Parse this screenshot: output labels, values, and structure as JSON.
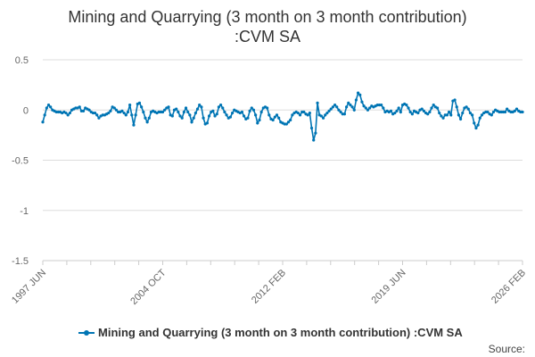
{
  "chart_data": {
    "type": "line",
    "title": [
      "Mining and Quarrying (3 month on 3 month contribution)",
      ":CVM SA"
    ],
    "xlabel": "",
    "ylabel": "",
    "ylim": [
      -1.5,
      0.5
    ],
    "y_ticks": [
      {
        "value": 0.5,
        "label": "0.5"
      },
      {
        "value": 0,
        "label": "0"
      },
      {
        "value": -0.5,
        "label": "-0.5"
      },
      {
        "value": -1,
        "label": "-1"
      },
      {
        "value": -1.5,
        "label": "-1.5"
      }
    ],
    "x_ticks": [
      "1997 JUN",
      "2004 OCT",
      "2012 FEB",
      "2019 JUN",
      "2026 FEB"
    ],
    "grid": "horizontal",
    "legend": {
      "position": "bottom",
      "entries": [
        "Mining and Quarrying (3 month on 3 month contribution) :CVM SA"
      ]
    },
    "series": [
      {
        "name": "Mining and Quarrying (3 month on 3 month contribution) :CVM SA",
        "color": "#0075b4",
        "start_period": "1997 JUN",
        "end_period": "2026 FEB",
        "values": [
          -0.12,
          -0.05,
          0.02,
          0.05,
          0.03,
          0.0,
          -0.01,
          -0.02,
          -0.02,
          -0.02,
          -0.03,
          -0.02,
          -0.03,
          -0.05,
          -0.03,
          0.0,
          0.01,
          0.02,
          0.02,
          0.03,
          -0.01,
          -0.01,
          0.02,
          0.01,
          0.0,
          -0.02,
          -0.03,
          -0.03,
          -0.05,
          -0.08,
          -0.06,
          -0.05,
          -0.05,
          -0.04,
          -0.03,
          -0.01,
          0.03,
          0.02,
          0.0,
          -0.02,
          -0.02,
          -0.01,
          -0.03,
          -0.05,
          -0.02,
          0.05,
          -0.05,
          -0.15,
          -0.05,
          0.06,
          0.07,
          0.03,
          -0.02,
          -0.08,
          -0.12,
          -0.08,
          -0.02,
          -0.01,
          -0.02,
          -0.03,
          -0.02,
          -0.02,
          -0.02,
          0.0,
          0.02,
          0.03,
          -0.05,
          -0.06,
          0.0,
          0.01,
          -0.02,
          -0.06,
          -0.08,
          -0.02,
          0.02,
          -0.02,
          -0.05,
          -0.12,
          -0.08,
          -0.03,
          0.01,
          0.05,
          0.03,
          -0.08,
          -0.14,
          -0.13,
          -0.06,
          -0.02,
          -0.01,
          -0.06,
          -0.04,
          0.03,
          0.05,
          0.02,
          -0.02,
          -0.05,
          -0.08,
          -0.07,
          -0.03,
          0.0,
          -0.01,
          -0.02,
          -0.03,
          -0.02,
          -0.06,
          -0.09,
          -0.08,
          -0.01,
          0.02,
          0.0,
          -0.05,
          -0.13,
          -0.1,
          -0.02,
          0.02,
          0.03,
          0.02,
          -0.05,
          -0.09,
          -0.1,
          -0.07,
          -0.05,
          -0.08,
          -0.12,
          -0.13,
          -0.14,
          -0.14,
          -0.12,
          -0.1,
          -0.05,
          -0.03,
          -0.02,
          -0.03,
          -0.05,
          -0.02,
          -0.02,
          -0.04,
          -0.05,
          -0.03,
          -0.18,
          -0.3,
          -0.23,
          0.07,
          -0.05,
          -0.06,
          -0.08,
          -0.05,
          -0.03,
          -0.01,
          0.01,
          0.03,
          0.05,
          0.03,
          0.0,
          -0.02,
          -0.04,
          -0.04,
          0.03,
          0.07,
          0.05,
          0.03,
          0.0,
          0.1,
          0.17,
          0.15,
          0.08,
          0.04,
          0.02,
          0.0,
          0.02,
          0.04,
          0.03,
          0.04,
          0.05,
          0.05,
          0.05,
          0.02,
          -0.02,
          -0.01,
          -0.02,
          -0.01,
          -0.04,
          -0.03,
          -0.01,
          0.02,
          -0.02,
          0.05,
          0.06,
          0.05,
          0.02,
          -0.02,
          -0.04,
          -0.01,
          -0.02,
          -0.03,
          0.0,
          0.01,
          -0.01,
          -0.03,
          -0.04,
          -0.02,
          0.02,
          0.05,
          0.03,
          0.02,
          -0.03,
          -0.06,
          -0.08,
          -0.05,
          -0.05,
          -0.02,
          -0.05,
          0.09,
          0.1,
          0.03,
          -0.05,
          -0.09,
          -0.03,
          0.02,
          0.03,
          0.01,
          -0.03,
          -0.05,
          -0.13,
          -0.18,
          -0.15,
          -0.08,
          -0.05,
          -0.03,
          -0.02,
          -0.02,
          -0.04,
          -0.05,
          -0.02,
          0.0,
          -0.01,
          -0.02,
          -0.02,
          -0.02,
          -0.02,
          0.01,
          -0.01,
          -0.02,
          -0.02,
          -0.01,
          0.01,
          -0.01,
          -0.02,
          -0.02
        ]
      }
    ]
  },
  "source": {
    "label": "Source:"
  }
}
